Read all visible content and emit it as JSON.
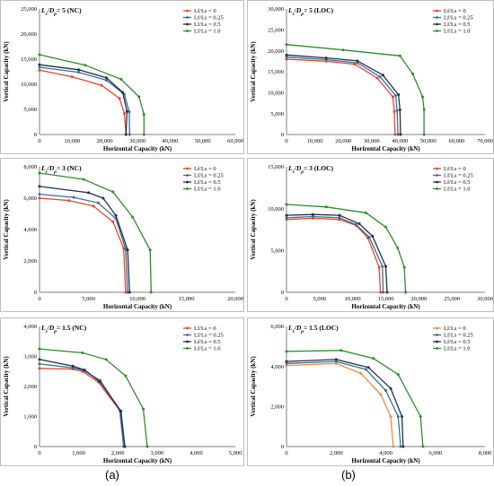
{
  "figure": {
    "label_a": "(a)",
    "label_b": "(b)"
  },
  "colors": {
    "s0": "#e8442f",
    "s1": "#3b6f8f",
    "s2": "#1f2f4f",
    "s3": "#2e8b2e",
    "s0_alt": "#f08a3c"
  },
  "chart_data": [
    {
      "id": "a1",
      "type": "line",
      "title_main": "L",
      "title_sub": "s",
      "title_sep": "/D",
      "title_sub2": "p",
      "title_rest": "= 5 (NC)",
      "xlabel": "Horizontal Capacity (kN)",
      "ylabel": "Vertical Capacity (kN)",
      "xlim": [
        0,
        60000
      ],
      "ylim": [
        0,
        25000
      ],
      "xticks": [
        "0",
        "10,000",
        "20,000",
        "30,000",
        "40,000",
        "50,000",
        "60,000"
      ],
      "yticks": [
        "0",
        "5,000",
        "10,000",
        "15,000",
        "20,000",
        "25,000"
      ],
      "legend": [
        "Lf/Ls = 0",
        "Lf/Ls = 0.25",
        "Lf/Ls = 0.5",
        "Lf/Ls = 1.0"
      ],
      "series": [
        {
          "name": "Lf/Ls = 0",
          "points": [
            [
              0,
              12800
            ],
            [
              10000,
              11500
            ],
            [
              19000,
              9800
            ],
            [
              24500,
              7200
            ],
            [
              26000,
              4200
            ],
            [
              26500,
              0
            ]
          ]
        },
        {
          "name": "Lf/Ls = 0.25",
          "points": [
            [
              0,
              13400
            ],
            [
              12000,
              12400
            ],
            [
              20500,
              10800
            ],
            [
              26000,
              8000
            ],
            [
              27500,
              4500
            ],
            [
              27600,
              0
            ]
          ]
        },
        {
          "name": "Lf/Ls = 0.5",
          "points": [
            [
              0,
              13900
            ],
            [
              12000,
              12900
            ],
            [
              20500,
              11300
            ],
            [
              25500,
              8400
            ],
            [
              26800,
              4600
            ],
            [
              26500,
              0
            ]
          ]
        },
        {
          "name": "Lf/Ls = 1.0",
          "points": [
            [
              0,
              15900
            ],
            [
              14000,
              13800
            ],
            [
              25000,
              11000
            ],
            [
              30500,
              7500
            ],
            [
              32000,
              4000
            ],
            [
              32000,
              0
            ]
          ]
        }
      ]
    },
    {
      "id": "b1",
      "type": "line",
      "title_main": "L",
      "title_sub": "s",
      "title_sep": "/D",
      "title_sub2": "p",
      "title_rest": "= 5 (LOC)",
      "xlabel": "Horizontal Capacity (kN)",
      "ylabel": "Vertical Capacity (kN)",
      "xlim": [
        0,
        70000
      ],
      "ylim": [
        0,
        30000
      ],
      "xticks": [
        "0",
        "10,000",
        "20,000",
        "30,000",
        "40,000",
        "50,000",
        "60,000",
        "70,000"
      ],
      "yticks": [
        "0",
        "5,000",
        "10,000",
        "15,000",
        "20,000",
        "25,000",
        "30,000"
      ],
      "legend": [
        "Lf/Ls = 0",
        "Lf/Ls = 0.25",
        "Lf/Ls = 0.5",
        "Lf/Ls = 1.0"
      ],
      "series": [
        {
          "name": "Lf/Ls = 0",
          "points": [
            [
              0,
              18000
            ],
            [
              14000,
              17500
            ],
            [
              24000,
              16800
            ],
            [
              32000,
              13500
            ],
            [
              37500,
              9000
            ],
            [
              38000,
              5500
            ],
            [
              38300,
              0
            ]
          ]
        },
        {
          "name": "Lf/Ls = 0.25",
          "points": [
            [
              0,
              18500
            ],
            [
              14000,
              17900
            ],
            [
              25000,
              17100
            ],
            [
              33000,
              13800
            ],
            [
              38500,
              9300
            ],
            [
              39000,
              5700
            ],
            [
              39300,
              0
            ]
          ]
        },
        {
          "name": "Lf/Ls = 0.5",
          "points": [
            [
              0,
              19000
            ],
            [
              14000,
              18300
            ],
            [
              25000,
              17600
            ],
            [
              34000,
              14200
            ],
            [
              39500,
              9500
            ],
            [
              40000,
              5900
            ],
            [
              40200,
              0
            ]
          ]
        },
        {
          "name": "Lf/Ls = 1.0",
          "points": [
            [
              0,
              21500
            ],
            [
              20000,
              20200
            ],
            [
              40000,
              18800
            ],
            [
              44500,
              14500
            ],
            [
              48000,
              9000
            ],
            [
              48500,
              6000
            ],
            [
              48500,
              0
            ]
          ]
        }
      ]
    },
    {
      "id": "a2",
      "type": "line",
      "title_main": "L",
      "title_sub": "s",
      "title_sep": "/D",
      "title_sub2": "p",
      "title_rest": "= 3 (NC)",
      "xlabel": "Horizontal Capacity (kN)",
      "ylabel": "Vertical Capacity (kN)",
      "xlim": [
        0,
        20000
      ],
      "ylim": [
        0,
        8000
      ],
      "xticks": [
        "0",
        "5,000",
        "10,000",
        "15,000",
        "20,000"
      ],
      "yticks": [
        "0",
        "2,000",
        "4,000",
        "6,000",
        "8,000"
      ],
      "legend": [
        "Lf/Ls = 0",
        "Lf/Ls = 0.25",
        "Lf/Ls = 0.5",
        "Lf/Ls = 1.0"
      ],
      "series": [
        {
          "name": "Lf/Ls = 0",
          "points": [
            [
              0,
              6000
            ],
            [
              3000,
              5850
            ],
            [
              5500,
              5500
            ],
            [
              7500,
              4500
            ],
            [
              8600,
              2800
            ],
            [
              8800,
              0
            ]
          ]
        },
        {
          "name": "Lf/Ls = 0.25",
          "points": [
            [
              0,
              6250
            ],
            [
              3500,
              6050
            ],
            [
              6000,
              5700
            ],
            [
              7800,
              4700
            ],
            [
              8800,
              2750
            ],
            [
              9000,
              0
            ]
          ]
        },
        {
          "name": "Lf/Ls = 0.5",
          "points": [
            [
              0,
              6750
            ],
            [
              5000,
              6350
            ],
            [
              6500,
              6000
            ],
            [
              7800,
              4900
            ],
            [
              9000,
              2700
            ],
            [
              9200,
              0
            ]
          ]
        },
        {
          "name": "Lf/Ls = 1.0",
          "points": [
            [
              0,
              7600
            ],
            [
              4500,
              7200
            ],
            [
              7500,
              6400
            ],
            [
              9500,
              4800
            ],
            [
              11300,
              2700
            ],
            [
              11400,
              0
            ]
          ]
        }
      ]
    },
    {
      "id": "b2",
      "type": "line",
      "title_main": "L",
      "title_sub": "s",
      "title_sep": "/D",
      "title_sub2": "p",
      "title_rest": "= 3 (LOC)",
      "xlabel": "Horizontal Capacity (kN)",
      "ylabel": "Vertical Capacity (kN)",
      "xlim": [
        0,
        30000
      ],
      "ylim": [
        0,
        15000
      ],
      "xticks": [
        "0",
        "5,000",
        "10,000",
        "15,000",
        "20,000",
        "25,000",
        "30,000"
      ],
      "yticks": [
        "0",
        "5,000",
        "10,000",
        "15,000"
      ],
      "legend": [
        "Lf/Ls = 0",
        "Lf/Ls = 0.25",
        "Lf/Ls = 0.5",
        "Lf/Ls = 1.0"
      ],
      "series": [
        {
          "name": "Lf/Ls = 0",
          "points": [
            [
              0,
              8700
            ],
            [
              4000,
              8850
            ],
            [
              8000,
              8700
            ],
            [
              10500,
              8000
            ],
            [
              12300,
              6500
            ],
            [
              14000,
              3000
            ],
            [
              14200,
              0
            ]
          ]
        },
        {
          "name": "Lf/Ls = 0.25",
          "points": [
            [
              0,
              8900
            ],
            [
              4000,
              9050
            ],
            [
              8000,
              8900
            ],
            [
              10500,
              8100
            ],
            [
              12500,
              6600
            ],
            [
              14500,
              3100
            ],
            [
              14600,
              0
            ]
          ]
        },
        {
          "name": "Lf/Ls = 0.5",
          "points": [
            [
              0,
              9200
            ],
            [
              4000,
              9300
            ],
            [
              8000,
              9200
            ],
            [
              11000,
              8200
            ],
            [
              13000,
              6700
            ],
            [
              15000,
              3100
            ],
            [
              15200,
              0
            ]
          ]
        },
        {
          "name": "Lf/Ls = 1.0",
          "points": [
            [
              0,
              10500
            ],
            [
              6000,
              10200
            ],
            [
              12000,
              9500
            ],
            [
              15000,
              7800
            ],
            [
              16800,
              5300
            ],
            [
              17800,
              3000
            ],
            [
              18000,
              0
            ]
          ]
        }
      ]
    },
    {
      "id": "a3",
      "type": "line",
      "title_main": "L",
      "title_sub": "s",
      "title_sep": "/D",
      "title_sub2": "p",
      "title_rest": "= 1.5 (NC)",
      "xlabel": "Horizontal Capacity (kN)",
      "ylabel": "Vertical Capacity (kN)",
      "xlim": [
        0,
        5000
      ],
      "ylim": [
        0,
        4000
      ],
      "xticks": [
        "0",
        "1,000",
        "2,000",
        "3,000",
        "4,000",
        "5,000"
      ],
      "yticks": [
        "0",
        "1,000",
        "2,000",
        "3,000",
        "4,000"
      ],
      "legend": [
        "Lf/Ls = 0",
        "Lf/Ls = 0.25",
        "Lf/Ls = 0.5",
        "Lf/Ls = 1.0"
      ],
      "series": [
        {
          "name": "Lf/Ls = 0",
          "points": [
            [
              0,
              2600
            ],
            [
              850,
              2580
            ],
            [
              1100,
              2500
            ],
            [
              1500,
              2150
            ],
            [
              2050,
              1200
            ],
            [
              2150,
              0
            ]
          ]
        },
        {
          "name": "Lf/Ls = 0.25",
          "points": [
            [
              0,
              2750
            ],
            [
              850,
              2620
            ],
            [
              1100,
              2550
            ],
            [
              1550,
              2200
            ],
            [
              2050,
              1200
            ],
            [
              2150,
              0
            ]
          ]
        },
        {
          "name": "Lf/Ls = 0.5",
          "points": [
            [
              0,
              2900
            ],
            [
              850,
              2680
            ],
            [
              1150,
              2550
            ],
            [
              1550,
              2150
            ],
            [
              2080,
              1180
            ],
            [
              2180,
              0
            ]
          ]
        },
        {
          "name": "Lf/Ls = 1.0",
          "points": [
            [
              0,
              3250
            ],
            [
              1100,
              3120
            ],
            [
              1700,
              2900
            ],
            [
              2200,
              2350
            ],
            [
              2650,
              1250
            ],
            [
              2750,
              0
            ]
          ]
        }
      ]
    },
    {
      "id": "b3",
      "type": "line",
      "title_main": "L",
      "title_sub": "s",
      "title_sep": "/D",
      "title_sub2": "p",
      "title_rest": "= 1.5 (LOC)",
      "xlabel": "Horizontal Capacity (kN)",
      "ylabel": "Vertical Capacity (kN)",
      "xlim": [
        0,
        8000
      ],
      "ylim": [
        0,
        6000
      ],
      "xticks": [
        "0",
        "2,000",
        "4,000",
        "6,000",
        "8,000"
      ],
      "yticks": [
        "0",
        "2,000",
        "4,000",
        "6,000"
      ],
      "legend": [
        "Lf/Ls = 0",
        "Lf/Ls = 0.25",
        "Lf/Ls = 0.5",
        "Lf/Ls = 1.0"
      ],
      "alt_first_color": true,
      "series": [
        {
          "name": "Lf/Ls = 0",
          "points": [
            [
              0,
              4050
            ],
            [
              2000,
              4150
            ],
            [
              3000,
              3650
            ],
            [
              3800,
              2600
            ],
            [
              4200,
              1500
            ],
            [
              4300,
              0
            ]
          ]
        },
        {
          "name": "Lf/Ls = 0.25",
          "points": [
            [
              0,
              4150
            ],
            [
              2000,
              4250
            ],
            [
              3200,
              3850
            ],
            [
              4000,
              2800
            ],
            [
              4500,
              1500
            ],
            [
              4600,
              0
            ]
          ]
        },
        {
          "name": "Lf/Ls = 0.5",
          "points": [
            [
              0,
              4250
            ],
            [
              2000,
              4350
            ],
            [
              3300,
              3950
            ],
            [
              4200,
              2900
            ],
            [
              4650,
              1500
            ],
            [
              4700,
              0
            ]
          ]
        },
        {
          "name": "Lf/Ls = 1.0",
          "points": [
            [
              0,
              4750
            ],
            [
              2200,
              4800
            ],
            [
              3500,
              4400
            ],
            [
              4500,
              3600
            ],
            [
              5400,
              1500
            ],
            [
              5500,
              0
            ]
          ]
        }
      ]
    }
  ]
}
